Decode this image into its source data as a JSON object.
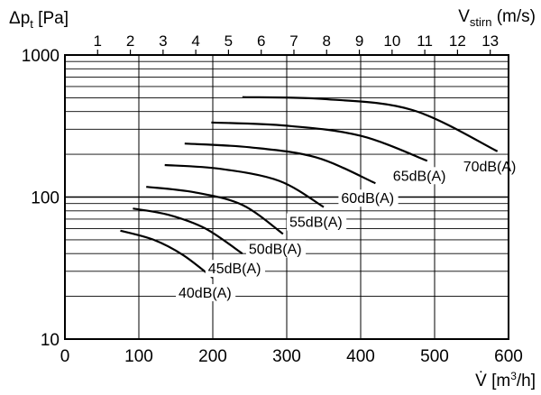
{
  "chart_data": {
    "type": "line",
    "title": "",
    "ylabel": "Δpt [Pa]",
    "ylabel_main": "Δp",
    "ylabel_sub": "t",
    "ylabel_unit": " [Pa]",
    "xlabel": "V̇ [m³/h]",
    "xlabel_main": "V̇ [m",
    "xlabel_sup": "3",
    "xlabel_unit": "/h]",
    "x2label": "Vstirn (m/s)",
    "x2label_main": "V",
    "x2label_sub": "stirn",
    "x2label_unit": " (m/s)",
    "xlim": [
      0,
      600
    ],
    "ylim": [
      10,
      1000
    ],
    "yscale": "log",
    "grid": true,
    "x_ticks": [
      0,
      100,
      200,
      300,
      400,
      500,
      600
    ],
    "y_ticks": [
      10,
      100,
      1000
    ],
    "x2_ticks": [
      1,
      2,
      3,
      4,
      5,
      6,
      7,
      8,
      9,
      10,
      11,
      12,
      13
    ],
    "x2_per_x": 0.0226,
    "series": [
      {
        "name": "40dB(A)",
        "x": [
          75,
          120,
          160,
          200
        ],
        "y": [
          58,
          50,
          39,
          27
        ]
      },
      {
        "name": "45dB(A)",
        "x": [
          92,
          140,
          190,
          240
        ],
        "y": [
          83,
          75,
          60,
          40
        ]
      },
      {
        "name": "50dB(A)",
        "x": [
          110,
          175,
          240,
          295
        ],
        "y": [
          118,
          108,
          88,
          55
        ]
      },
      {
        "name": "55dB(A)",
        "x": [
          135,
          210,
          290,
          350
        ],
        "y": [
          168,
          158,
          130,
          85
        ]
      },
      {
        "name": "60dB(A)",
        "x": [
          162,
          250,
          340,
          420
        ],
        "y": [
          238,
          224,
          190,
          125
        ]
      },
      {
        "name": "65dB(A)",
        "x": [
          198,
          300,
          400,
          490
        ],
        "y": [
          335,
          318,
          270,
          180
        ]
      },
      {
        "name": "70dB(A)",
        "x": [
          240,
          350,
          470,
          585
        ],
        "y": [
          505,
          490,
          410,
          210
        ]
      }
    ]
  }
}
